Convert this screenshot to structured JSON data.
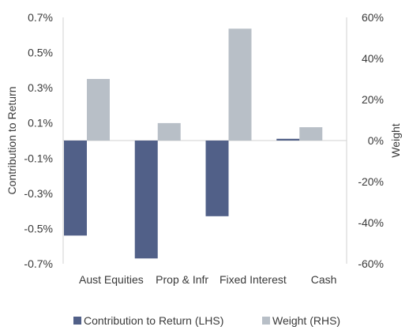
{
  "chart_data": {
    "type": "bar",
    "categories": [
      "Aust Equities",
      "Prop & Infr",
      "Fixed Interest",
      "Cash"
    ],
    "series": [
      {
        "name": "Contribution to Return (LHS)",
        "axis": "left",
        "color": "#516088",
        "values": [
          -0.54,
          -0.67,
          -0.43,
          0.01
        ]
      },
      {
        "name": "Weight (RHS)",
        "axis": "right",
        "color": "#b8bfc7",
        "values": [
          30,
          8.5,
          54.5,
          6.5
        ]
      }
    ],
    "ylabel_left": "Contribution to Return",
    "ylabel_right": "Weight",
    "ylim_left": [
      -0.7,
      0.7
    ],
    "ylim_right": [
      -60,
      60
    ],
    "yticks_left": [
      "0.7%",
      "0.5%",
      "0.3%",
      "0.1%",
      "-0.1%",
      "-0.3%",
      "-0.5%",
      "-0.7%"
    ],
    "yticks_right": [
      "60%",
      "40%",
      "20%",
      "0%",
      "-20%",
      "-40%",
      "-60%"
    ],
    "grid": false,
    "legend_position": "bottom"
  }
}
